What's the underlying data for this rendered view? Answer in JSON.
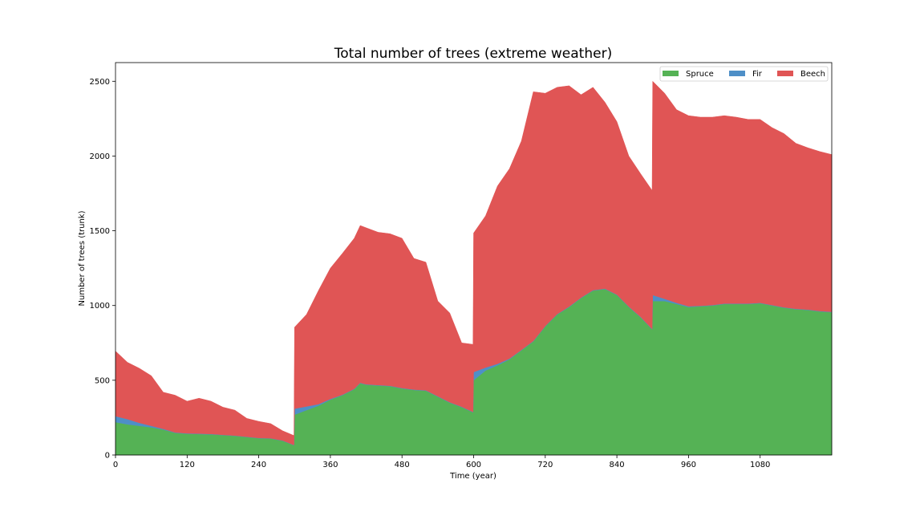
{
  "chart_data": {
    "type": "area",
    "stacked": true,
    "title": "Total number of trees (extreme weather)",
    "xlabel": "Time (year)",
    "ylabel": "Number of trees (trunk)",
    "xlim": [
      0,
      1200
    ],
    "ylim": [
      0,
      2625
    ],
    "xticks": [
      0,
      120,
      240,
      360,
      480,
      600,
      720,
      840,
      960,
      1080
    ],
    "yticks": [
      0,
      500,
      1000,
      1500,
      2000,
      2500
    ],
    "grid": false,
    "legend_position": "top-right",
    "legend_columns": 3,
    "x": [
      0,
      20,
      40,
      60,
      80,
      100,
      120,
      140,
      160,
      180,
      200,
      220,
      240,
      260,
      280,
      299,
      300,
      320,
      340,
      360,
      380,
      400,
      410,
      420,
      440,
      460,
      480,
      500,
      520,
      540,
      560,
      580,
      599,
      600,
      620,
      640,
      660,
      680,
      700,
      720,
      740,
      760,
      780,
      800,
      820,
      840,
      860,
      880,
      899,
      900,
      920,
      940,
      960,
      980,
      1000,
      1020,
      1040,
      1060,
      1080,
      1100,
      1120,
      1140,
      1160,
      1180,
      1200
    ],
    "series": [
      {
        "name": "Spruce",
        "color": "#55b255",
        "values": [
          220,
          205,
          195,
          185,
          170,
          148,
          142,
          140,
          138,
          133,
          128,
          120,
          112,
          110,
          95,
          65,
          270,
          300,
          330,
          370,
          400,
          440,
          480,
          470,
          465,
          460,
          445,
          435,
          430,
          390,
          350,
          320,
          285,
          500,
          565,
          600,
          640,
          700,
          760,
          860,
          940,
          990,
          1050,
          1100,
          1110,
          1070,
          990,
          920,
          840,
          1030,
          1030,
          1010,
          990,
          995,
          1000,
          1010,
          1010,
          1010,
          1015,
          1000,
          985,
          975,
          970,
          960,
          955
        ]
      },
      {
        "name": "Fir",
        "color": "#4e8fc7",
        "values": [
          40,
          35,
          20,
          10,
          5,
          3,
          3,
          3,
          3,
          2,
          2,
          2,
          2,
          2,
          2,
          2,
          40,
          25,
          10,
          5,
          3,
          3,
          3,
          3,
          3,
          3,
          3,
          3,
          3,
          3,
          3,
          3,
          3,
          55,
          20,
          10,
          5,
          3,
          3,
          3,
          3,
          3,
          3,
          3,
          3,
          3,
          3,
          3,
          3,
          40,
          15,
          8,
          5,
          3,
          3,
          3,
          3,
          3,
          3,
          3,
          3,
          3,
          3,
          3,
          3
        ]
      },
      {
        "name": "Beech",
        "color": "#e05555",
        "values": [
          435,
          380,
          365,
          335,
          245,
          249,
          215,
          237,
          219,
          185,
          170,
          123,
          111,
          98,
          65,
          63,
          545,
          615,
          760,
          875,
          945,
          1007,
          1052,
          1047,
          1022,
          1017,
          1002,
          877,
          857,
          637,
          597,
          427,
          452,
          930,
          1015,
          1190,
          1270,
          1397,
          1667,
          1557,
          1517,
          1477,
          1357,
          1357,
          1247,
          1157,
          1007,
          957,
          927,
          1430,
          1375,
          1292,
          1275,
          1262,
          1257,
          1257,
          1247,
          1232,
          1227,
          1187,
          1162,
          1107,
          1082,
          1067,
          1052
        ]
      }
    ]
  }
}
